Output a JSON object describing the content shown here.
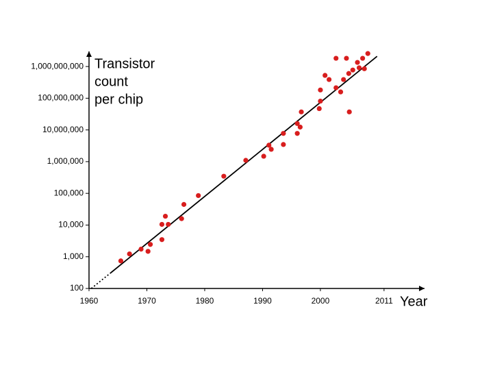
{
  "chart_data": {
    "type": "scatter",
    "ylabel": [
      "Transistor",
      "count",
      "per chip"
    ],
    "xlabel": "Year",
    "log_y": true,
    "xlim": [
      1960,
      2018
    ],
    "ylim": [
      100,
      3000000000
    ],
    "xticks": [
      1960,
      1970,
      1980,
      1990,
      2000,
      2011
    ],
    "yticks": [
      100,
      {
        "value": 1000,
        "label": "1,000"
      },
      {
        "value": 10000,
        "label": "10,000"
      },
      {
        "value": 100000,
        "label": "100,000"
      },
      {
        "value": 1000000,
        "label": "1,000,000"
      },
      {
        "value": 10000000,
        "label": "10,000,000"
      },
      {
        "value": 100000000,
        "label": "100,000,000"
      },
      {
        "value": 1000000000,
        "label": "1,000,000,000"
      }
    ],
    "series": [
      {
        "color": "#d81e1e",
        "x": [
          1965.5,
          1967.0,
          1969.0,
          1970.2,
          1970.6,
          1972.6,
          1972.6,
          1973.2,
          1973.7,
          1976.0,
          1976.4,
          1978.9,
          1983.3,
          1987.1,
          1990.2,
          1991.1,
          1991.5,
          1993.6,
          1993.6,
          1996.0,
          1996.0,
          1996.5,
          1996.7,
          1999.8,
          2000.0,
          2000.0,
          2000.8,
          2001.5,
          2002.7,
          2002.7,
          2003.5,
          2004.0,
          2004.5,
          2004.9,
          2005.0,
          2005.6,
          2006.4,
          2006.7,
          2007.3,
          2007.6,
          2008.2
        ],
        "values": [
          740,
          1230,
          1740,
          1480,
          2450,
          3470,
          10500,
          19000,
          10500,
          15900,
          44700,
          85000,
          347000,
          1100000,
          1480000,
          3300000,
          2450000,
          3470000,
          7760000,
          15900000,
          7760000,
          12300000,
          37000000,
          47000000,
          81000000,
          182000000,
          525000000,
          389000000,
          1820000000,
          214000000,
          158000000,
          389000000,
          1820000000,
          603000000,
          37000000,
          776000000,
          1350000000,
          912000000,
          1820000000,
          851000000,
          2570000000
        ]
      }
    ],
    "trend_line": {
      "x": [
        1963.8,
        2009.8
      ],
      "values": [
        316,
        2100000000
      ],
      "color": "#000000"
    },
    "trend_extension": {
      "x": [
        1960.4,
        1963.8
      ],
      "values": [
        100,
        316
      ],
      "color": "#000000"
    }
  }
}
